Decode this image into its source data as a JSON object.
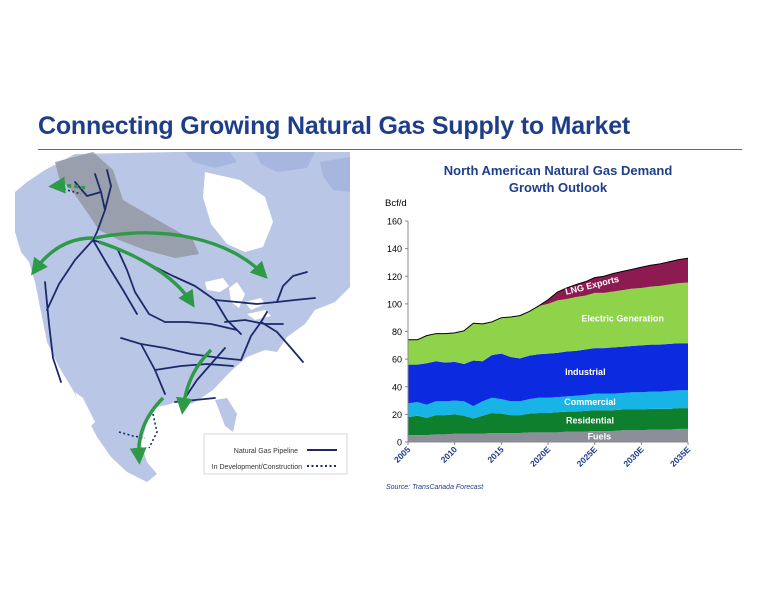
{
  "page": {
    "title": "Connecting Growing Natural Gas Supply to Market"
  },
  "map": {
    "legend": {
      "pipeline_label": "Natural Gas Pipeline",
      "development_label": "In Development/Construction"
    },
    "colors": {
      "land": "#b9c6e6",
      "land_dark": "#a7b6de",
      "water": "#ffffff",
      "supply_region": "#8f939c",
      "pipeline": "#1c2a6b",
      "arrow": "#2e9a48"
    }
  },
  "chart_data": {
    "type": "area",
    "stacked": true,
    "title": "North American Natural Gas Demand Growth Outlook",
    "title_lines": [
      "North American Natural Gas Demand",
      "Growth Outlook"
    ],
    "ylabel": "Bcf/d",
    "ylim": [
      0,
      160
    ],
    "yticks": [
      0,
      20,
      40,
      60,
      80,
      100,
      120,
      140,
      160
    ],
    "xlim": [
      2005,
      2035
    ],
    "xtick_values": [
      2005,
      2010,
      2015,
      2020,
      2025,
      2030,
      2035
    ],
    "xtick_labels": [
      "2005",
      "2010",
      "2015",
      "2020E",
      "2025E",
      "2030E",
      "2035E"
    ],
    "x": [
      2005,
      2006,
      2007,
      2008,
      2009,
      2010,
      2011,
      2012,
      2013,
      2014,
      2015,
      2016,
      2017,
      2018,
      2019,
      2020,
      2021,
      2022,
      2023,
      2024,
      2025,
      2026,
      2027,
      2028,
      2029,
      2030,
      2031,
      2032,
      2033,
      2034,
      2035
    ],
    "series": [
      {
        "name": "Fuels",
        "color": "#8c8f99",
        "values": [
          5,
          5,
          5,
          5.5,
          5.5,
          6,
          6,
          6,
          6,
          6.5,
          6.5,
          6.5,
          6.5,
          7,
          7,
          7,
          7,
          7.5,
          7.5,
          7.5,
          8,
          8,
          8,
          8.5,
          8.5,
          8.5,
          9,
          9,
          9,
          9.5,
          9.5
        ]
      },
      {
        "name": "Residential",
        "color": "#0e7f2c",
        "values": [
          13,
          14,
          12.5,
          14,
          14,
          14,
          13,
          11,
          13,
          14.5,
          14,
          13,
          13,
          13.5,
          14,
          14,
          14.5,
          14.5,
          14.5,
          15,
          15,
          15,
          15,
          15,
          15,
          15,
          15,
          15,
          15,
          15,
          15
        ]
      },
      {
        "name": "Commercial",
        "color": "#19b4e6",
        "values": [
          10,
          10,
          9.5,
          10,
          10,
          10,
          10.5,
          9,
          10.5,
          11,
          10.5,
          10,
          10,
          10.5,
          11,
          11,
          11,
          11,
          11.5,
          11.5,
          12,
          12,
          12,
          12,
          12.5,
          12.5,
          12.5,
          12.5,
          13,
          13,
          13
        ]
      },
      {
        "name": "Industrial",
        "color": "#0c2be0",
        "values": [
          28,
          27,
          30,
          29,
          28,
          28,
          27,
          33,
          29,
          31,
          33,
          32,
          31,
          31.5,
          31.5,
          32,
          32,
          32.5,
          32.5,
          33,
          33,
          33,
          33.5,
          33.5,
          33.5,
          34,
          34,
          34,
          34,
          34,
          34
        ]
      },
      {
        "name": "Electric Generation",
        "color": "#8fd34b",
        "values": [
          18,
          18,
          20,
          20,
          21,
          21,
          24,
          27,
          27,
          24,
          26,
          29,
          31,
          32,
          35,
          36,
          38,
          38,
          39,
          39,
          40,
          40,
          40.5,
          41,
          41.5,
          41.5,
          42,
          42.5,
          43,
          43.5,
          44
        ]
      },
      {
        "name": "LNG Exports",
        "color": "#8e1a52",
        "values": [
          0,
          0,
          0,
          0,
          0,
          0,
          0,
          0,
          0,
          0,
          0,
          0,
          0,
          0,
          0,
          3,
          6,
          8,
          9,
          10,
          11,
          12,
          13,
          13.5,
          14,
          15,
          15.5,
          16,
          16.5,
          17,
          17.5
        ]
      }
    ],
    "source_note": "Source:  TransCanada Forecast"
  }
}
